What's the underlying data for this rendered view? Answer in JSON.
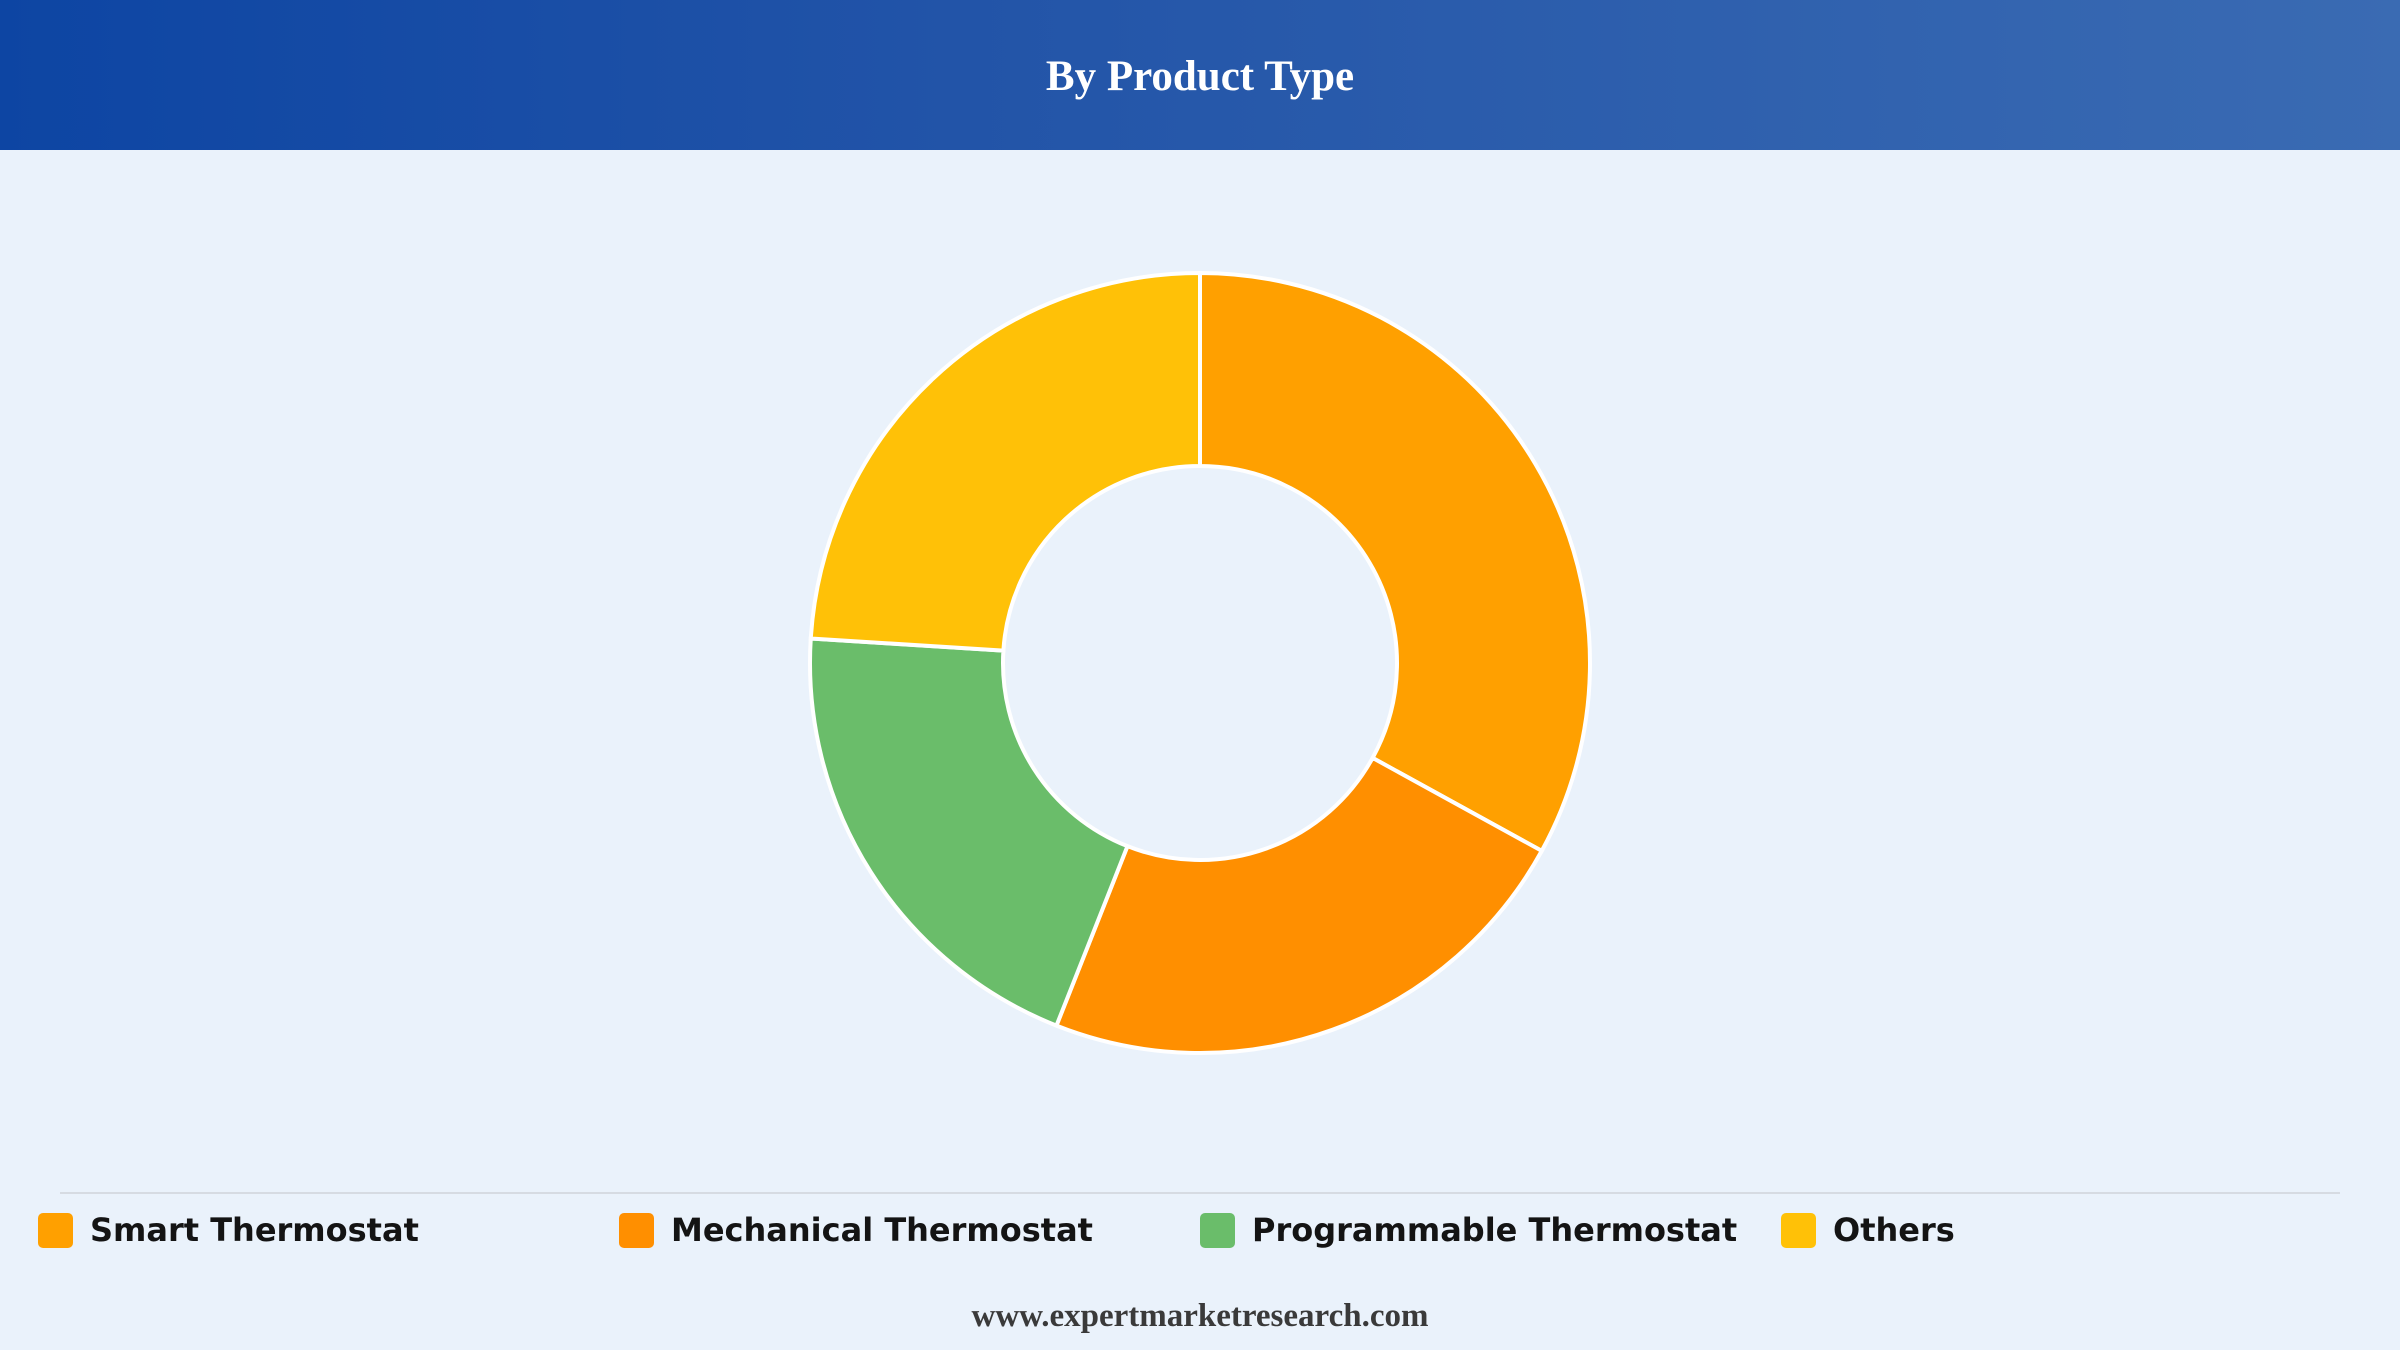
{
  "header": {
    "title": "By Product Type"
  },
  "chart_data": {
    "type": "pie",
    "variant": "donut",
    "title": "By Product Type",
    "categories": [
      "Smart Thermostat",
      "Mechanical Thermostat",
      "Programmable Thermostat",
      "Others"
    ],
    "values": [
      33,
      23,
      20,
      24
    ],
    "unit": "%",
    "colors": [
      "#ffa000",
      "#ff8f00",
      "#6abd6a",
      "#ffc107"
    ],
    "start": "12 o'clock, clockwise",
    "legend_position": "bottom"
  },
  "legend": {
    "items": [
      {
        "label": "Smart Thermostat",
        "color": "#ffa000"
      },
      {
        "label": "Mechanical Thermostat",
        "color": "#ff8f00"
      },
      {
        "label": "Programmable Thermostat",
        "color": "#6abd6a"
      },
      {
        "label": "Others",
        "color": "#ffc107"
      }
    ]
  },
  "footer": {
    "source": "www.expertmarketresearch.com"
  }
}
